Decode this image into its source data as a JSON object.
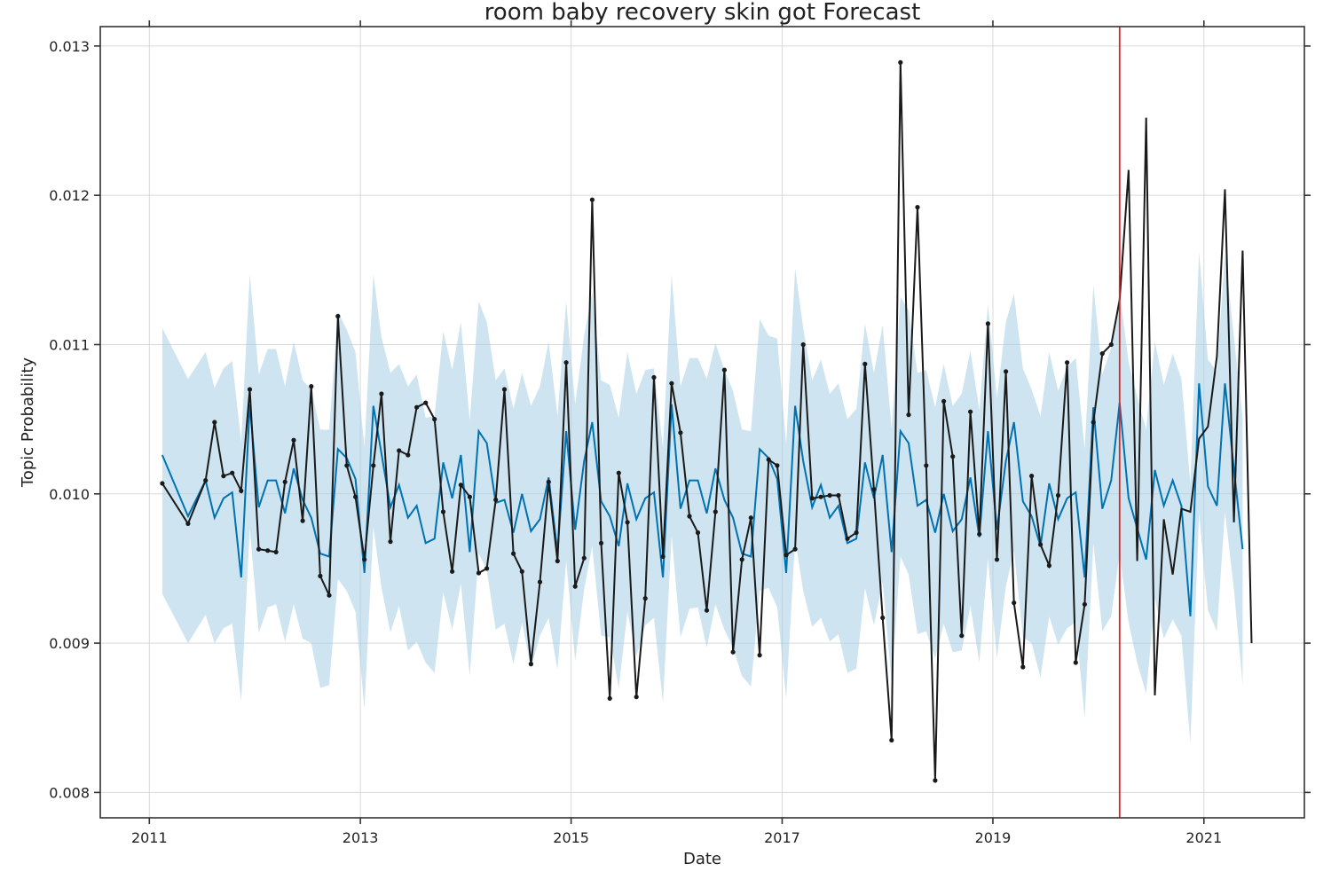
{
  "colors": {
    "forecast": "#0072B2",
    "band": "#a6cde4",
    "actual": "#1a1a1a",
    "cutoff": "#d62728",
    "grid": "#d9d9d9",
    "axis": "#333333"
  },
  "chart_data": {
    "type": "line",
    "title": "room baby recovery skin got Forecast",
    "xlabel": "Date",
    "ylabel": "Topic Probability",
    "xlim": [
      "2010-07-15",
      "2021-12-15"
    ],
    "ylim": [
      0.00783,
      0.01313
    ],
    "x_ticks": [
      "2011",
      "2013",
      "2015",
      "2017",
      "2019",
      "2021"
    ],
    "y_ticks": [
      "0.008",
      "0.009",
      "0.010",
      "0.011",
      "0.012",
      "0.013"
    ],
    "grid": true,
    "cutoff_date": "2020-03-15",
    "series": [
      {
        "name": "",
        "kind": "forecast",
        "x": [
          "2011-02",
          "2011-05",
          "2011-07",
          "2011-08",
          "2011-09",
          "2011-10",
          "2011-11",
          "2011-12",
          "2012-01",
          "2012-02",
          "2012-03",
          "2012-04",
          "2012-05",
          "2012-06",
          "2012-07",
          "2012-08",
          "2012-09",
          "2012-10",
          "2012-11",
          "2012-12",
          "2013-01",
          "2013-02",
          "2013-03",
          "2013-04",
          "2013-05",
          "2013-06",
          "2013-07",
          "2013-08",
          "2013-09",
          "2013-10",
          "2013-11",
          "2013-12",
          "2014-01",
          "2014-02",
          "2014-03",
          "2014-04",
          "2014-05",
          "2014-06",
          "2014-07",
          "2014-08",
          "2014-09",
          "2014-10",
          "2014-11",
          "2014-12",
          "2015-01",
          "2015-02",
          "2015-03",
          "2015-04",
          "2015-05",
          "2015-06",
          "2015-07",
          "2015-08",
          "2015-09",
          "2015-10",
          "2015-11",
          "2015-12",
          "2016-01",
          "2016-02",
          "2016-03",
          "2016-04",
          "2016-05",
          "2016-06",
          "2016-07",
          "2016-08",
          "2016-09",
          "2016-10",
          "2016-11",
          "2016-12",
          "2017-01",
          "2017-02",
          "2017-03",
          "2017-04",
          "2017-05",
          "2017-06",
          "2017-07",
          "2017-08",
          "2017-09",
          "2017-10",
          "2017-11",
          "2017-12",
          "2018-01",
          "2018-02",
          "2018-03",
          "2018-04",
          "2018-05",
          "2018-06",
          "2018-07",
          "2018-08",
          "2018-09",
          "2018-10",
          "2018-11",
          "2018-12",
          "2019-01",
          "2019-02",
          "2019-03",
          "2019-04",
          "2019-05",
          "2019-06",
          "2019-07",
          "2019-08",
          "2019-09",
          "2019-10",
          "2019-11",
          "2019-12",
          "2020-01",
          "2020-02",
          "2020-03",
          "2020-04",
          "2020-05",
          "2020-06",
          "2020-07",
          "2020-08",
          "2020-09",
          "2020-10",
          "2020-11",
          "2020-12",
          "2021-01",
          "2021-02",
          "2021-03",
          "2021-04",
          "2021-05"
        ],
        "yhat": [
          0.01026,
          0.00985,
          0.01009,
          0.00984,
          0.00997,
          0.01001,
          0.00944,
          0.0106,
          0.00991,
          0.01009,
          0.01009,
          0.00987,
          0.01017,
          0.00996,
          0.00984,
          0.0096,
          0.00958,
          0.0103,
          0.01024,
          0.0101,
          0.00947,
          0.01059,
          0.01027,
          0.00991,
          0.01006,
          0.00984,
          0.00992,
          0.00967,
          0.0097,
          0.01021,
          0.00997,
          0.01026,
          0.00961,
          0.01042,
          0.01034,
          0.00994,
          0.00996,
          0.00974,
          0.01,
          0.00975,
          0.00983,
          0.01011,
          0.00961,
          0.01042,
          0.00976,
          0.01022,
          0.01048,
          0.00995,
          0.00985,
          0.00965,
          0.01007,
          0.00983,
          0.00997,
          0.01001,
          0.00944,
          0.0106,
          0.0099,
          0.01009,
          0.01009,
          0.00987,
          0.01017,
          0.00996,
          0.00984,
          0.0096,
          0.00958,
          0.0103,
          0.01024,
          0.0101,
          0.00947,
          0.01059,
          0.01022,
          0.00991,
          0.01006,
          0.00984,
          0.00992,
          0.00967,
          0.0097,
          0.01021,
          0.00997,
          0.01026,
          0.00961,
          0.01042,
          0.01034,
          0.00992,
          0.00996,
          0.00974,
          0.01,
          0.00975,
          0.00983,
          0.01011,
          0.00971,
          0.01042,
          0.00976,
          0.01022,
          0.01048,
          0.00995,
          0.00985,
          0.00965,
          0.01007,
          0.00983,
          0.00997,
          0.01001,
          0.00944,
          0.01058,
          0.0099,
          0.01009,
          0.01061,
          0.00997,
          0.00977,
          0.00956,
          0.01016,
          0.00992,
          0.01009,
          0.00992,
          0.00918,
          0.01074,
          0.01005,
          0.00992,
          0.01074,
          0.01017,
          0.00963
        ],
        "upper": [
          0.01111,
          0.01077,
          0.01095,
          0.01071,
          0.01084,
          0.01089,
          0.01035,
          0.01147,
          0.0108,
          0.01097,
          0.01097,
          0.01072,
          0.01102,
          0.01076,
          0.0107,
          0.01043,
          0.01043,
          0.01122,
          0.0111,
          0.01095,
          0.01031,
          0.01147,
          0.01105,
          0.01081,
          0.01087,
          0.01072,
          0.0108,
          0.01051,
          0.01052,
          0.01109,
          0.01083,
          0.01115,
          0.01049,
          0.01129,
          0.01115,
          0.01076,
          0.01084,
          0.01057,
          0.01081,
          0.01059,
          0.01072,
          0.01102,
          0.01052,
          0.01129,
          0.0106,
          0.01106,
          0.01135,
          0.01076,
          0.01073,
          0.01051,
          0.01095,
          0.01067,
          0.01083,
          0.01084,
          0.01031,
          0.01147,
          0.01072,
          0.01091,
          0.01091,
          0.01077,
          0.01101,
          0.01083,
          0.01069,
          0.01043,
          0.01042,
          0.01117,
          0.01106,
          0.01104,
          0.01033,
          0.01151,
          0.01111,
          0.01076,
          0.0109,
          0.01067,
          0.01074,
          0.0105,
          0.01057,
          0.01114,
          0.01081,
          0.01113,
          0.01044,
          0.01132,
          0.01123,
          0.01081,
          0.01083,
          0.01058,
          0.01087,
          0.01059,
          0.01067,
          0.01096,
          0.01056,
          0.01127,
          0.01064,
          0.01115,
          0.01134,
          0.01084,
          0.0107,
          0.01052,
          0.01095,
          0.01069,
          0.01085,
          0.01091,
          0.0103,
          0.0114,
          0.0108,
          0.01098,
          0.01136,
          0.01088,
          0.01065,
          0.01043,
          0.01102,
          0.01073,
          0.01094,
          0.01077,
          0.01007,
          0.01162,
          0.0109,
          0.01082,
          0.01161,
          0.01105,
          0.01051
        ],
        "lower": [
          0.00933,
          0.009,
          0.00919,
          0.009,
          0.0091,
          0.00913,
          0.00861,
          0.00977,
          0.00907,
          0.00924,
          0.00926,
          0.00901,
          0.00926,
          0.00903,
          0.009,
          0.0087,
          0.00872,
          0.00943,
          0.00935,
          0.00921,
          0.00856,
          0.00978,
          0.00937,
          0.00907,
          0.00925,
          0.00895,
          0.00901,
          0.00887,
          0.0088,
          0.00934,
          0.00909,
          0.0094,
          0.00878,
          0.0096,
          0.00949,
          0.00909,
          0.00913,
          0.00886,
          0.00914,
          0.00883,
          0.00905,
          0.00917,
          0.00882,
          0.00955,
          0.00888,
          0.00936,
          0.00965,
          0.00905,
          0.00904,
          0.0087,
          0.00921,
          0.00891,
          0.00912,
          0.00917,
          0.0086,
          0.00972,
          0.00904,
          0.00923,
          0.00924,
          0.00897,
          0.00926,
          0.00909,
          0.00897,
          0.00878,
          0.00871,
          0.00935,
          0.00937,
          0.00924,
          0.00863,
          0.0097,
          0.00935,
          0.00911,
          0.00917,
          0.00901,
          0.00906,
          0.0088,
          0.00883,
          0.00937,
          0.00912,
          0.00941,
          0.00874,
          0.00958,
          0.00946,
          0.00906,
          0.00908,
          0.0089,
          0.00913,
          0.00894,
          0.00895,
          0.00925,
          0.00887,
          0.00957,
          0.0089,
          0.00938,
          0.00962,
          0.00904,
          0.009,
          0.00877,
          0.00918,
          0.00899,
          0.0091,
          0.00914,
          0.0085,
          0.00967,
          0.00908,
          0.00918,
          0.0096,
          0.00914,
          0.00887,
          0.00866,
          0.0093,
          0.00903,
          0.00916,
          0.00905,
          0.00833,
          0.00987,
          0.00922,
          0.00908,
          0.00988,
          0.00936,
          0.00872
        ]
      },
      {
        "name": "",
        "kind": "actual",
        "x": [
          "2011-02",
          "2011-05",
          "2011-07",
          "2011-08",
          "2011-09",
          "2011-10",
          "2011-11",
          "2011-12",
          "2012-01",
          "2012-02",
          "2012-03",
          "2012-04",
          "2012-05",
          "2012-06",
          "2012-07",
          "2012-08",
          "2012-09",
          "2012-10",
          "2012-11",
          "2012-12",
          "2013-01",
          "2013-02",
          "2013-03",
          "2013-04",
          "2013-05",
          "2013-06",
          "2013-07",
          "2013-08",
          "2013-09",
          "2013-10",
          "2013-11",
          "2013-12",
          "2014-01",
          "2014-02",
          "2014-03",
          "2014-04",
          "2014-05",
          "2014-06",
          "2014-07",
          "2014-08",
          "2014-09",
          "2014-10",
          "2014-11",
          "2014-12",
          "2015-01",
          "2015-02",
          "2015-03",
          "2015-04",
          "2015-05",
          "2015-06",
          "2015-07",
          "2015-08",
          "2015-09",
          "2015-10",
          "2015-11",
          "2015-12",
          "2016-01",
          "2016-02",
          "2016-03",
          "2016-04",
          "2016-05",
          "2016-06",
          "2016-07",
          "2016-08",
          "2016-09",
          "2016-10",
          "2016-11",
          "2016-12",
          "2017-01",
          "2017-02",
          "2017-03",
          "2017-04",
          "2017-05",
          "2017-06",
          "2017-07",
          "2017-08",
          "2017-09",
          "2017-10",
          "2017-11",
          "2017-12",
          "2018-01",
          "2018-02",
          "2018-03",
          "2018-04",
          "2018-05",
          "2018-06",
          "2018-07",
          "2018-08",
          "2018-09",
          "2018-10",
          "2018-11",
          "2018-12",
          "2019-01",
          "2019-02",
          "2019-03",
          "2019-04",
          "2019-05",
          "2019-06",
          "2019-07",
          "2019-08",
          "2019-09",
          "2019-10",
          "2019-11",
          "2019-12",
          "2020-01",
          "2020-02",
          "2020-03",
          "2020-04",
          "2020-05",
          "2020-06",
          "2020-07",
          "2020-08",
          "2020-09",
          "2020-10",
          "2020-11",
          "2020-12",
          "2021-01",
          "2021-02",
          "2021-03",
          "2021-04",
          "2021-05",
          "2021-06"
        ],
        "y": [
          0.01007,
          0.0098,
          0.01009,
          0.01048,
          0.01012,
          0.01014,
          0.01002,
          0.0107,
          0.00963,
          0.00962,
          0.00961,
          0.01008,
          0.01036,
          0.00982,
          0.01072,
          0.00945,
          0.00932,
          0.01119,
          0.01019,
          0.00998,
          0.00956,
          0.01019,
          0.01067,
          0.00968,
          0.01029,
          0.01026,
          0.01058,
          0.01061,
          0.0105,
          0.00988,
          0.00948,
          0.01006,
          0.00998,
          0.00947,
          0.0095,
          0.00996,
          0.0107,
          0.0096,
          0.00948,
          0.00886,
          0.00941,
          0.01008,
          0.00955,
          0.01088,
          0.00938,
          0.00957,
          0.01197,
          0.00967,
          0.00863,
          0.01014,
          0.00981,
          0.00864,
          0.0093,
          0.01078,
          0.00958,
          0.01074,
          0.01041,
          0.00985,
          0.00974,
          0.00922,
          0.00988,
          0.01083,
          0.00894,
          0.00956,
          0.00984,
          0.00892,
          0.01023,
          0.01019,
          0.00959,
          0.00963,
          0.011,
          0.00997,
          0.00998,
          0.00999,
          0.00999,
          0.0097,
          0.00974,
          0.01087,
          0.01003,
          0.00917,
          0.00835,
          0.01289,
          0.01053,
          0.01192,
          0.01019,
          0.00808,
          0.01062,
          0.01025,
          0.00905,
          0.01055,
          0.00973,
          0.01114,
          0.00956,
          0.01082,
          0.00927,
          0.00884,
          0.01012,
          0.00966,
          0.00952,
          0.00999,
          0.01088,
          0.00887,
          0.00926,
          0.01048,
          0.01094,
          0.011,
          0.0113,
          0.01217,
          0.00955,
          0.01252,
          0.00865,
          0.00983,
          0.00946,
          0.0099,
          0.00988,
          0.01037,
          0.01045,
          0.01092,
          0.01204,
          0.00981,
          0.01163,
          0.009
        ],
        "markers_until": "2020-02"
      }
    ]
  }
}
